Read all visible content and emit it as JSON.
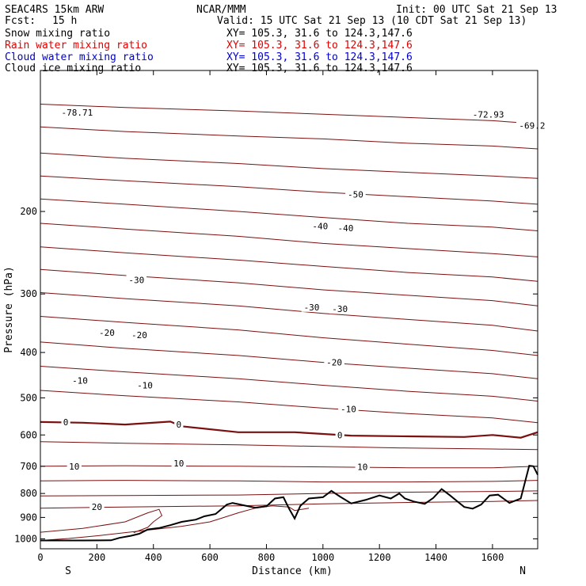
{
  "header": {
    "model": "SEAC4RS 15km ARW",
    "forecast_label": "Fcst:",
    "forecast_value": "15 h",
    "center": "NCAR/MMM",
    "init": "Init: 00 UTC Sat 21 Sep 13",
    "valid": "Valid: 15 UTC Sat 21 Sep 13 (10 CDT Sat 21 Sep 13)"
  },
  "fields": [
    {
      "name": "Snow mixing ratio",
      "xy": "XY= 105.3, 31.6 to 124.3,147.6",
      "color": "#000000"
    },
    {
      "name": "Rain water mixing ratio",
      "xy": "XY= 105.3, 31.6 to 124.3,147.6",
      "color": "#e00000"
    },
    {
      "name": "Cloud water mixing ratio",
      "xy": "XY= 105.3, 31.6 to 124.3,147.6",
      "color": "#0000cc"
    },
    {
      "name": "Cloud ice mixing ratio",
      "xy": "XY= 105.3, 31.6 to 124.3,147.6",
      "color": "#000000"
    }
  ],
  "chart_data": {
    "type": "line",
    "xlabel": "Distance (km)",
    "ylabel": "Pressure (hPa)",
    "xlim": [
      0,
      1760
    ],
    "ylim": [
      1050,
      100
    ],
    "y_scale": "log",
    "x_ticks": [
      0,
      200,
      400,
      600,
      800,
      1000,
      1200,
      1400,
      1600
    ],
    "y_ticks": [
      200,
      300,
      400,
      500,
      600,
      700,
      800,
      900,
      1000
    ],
    "x_end_labels": [
      "S",
      "N"
    ],
    "contour_color": "#7a1010",
    "isotherms": [
      {
        "x": [
          0,
          300,
          700,
          1000,
          1300,
          1600,
          1760
        ],
        "y": [
          118,
          120,
          122,
          124,
          126,
          128,
          130
        ]
      },
      {
        "x": [
          0,
          300,
          700,
          1000,
          1300,
          1600,
          1760
        ],
        "y": [
          132,
          135,
          138,
          140,
          143,
          145,
          147
        ]
      },
      {
        "x": [
          0,
          300,
          700,
          1000,
          1300,
          1600,
          1760
        ],
        "y": [
          150,
          154,
          158,
          162,
          165,
          168,
          170
        ]
      },
      {
        "x": [
          0,
          300,
          700,
          1000,
          1300,
          1600,
          1760
        ],
        "y": [
          168,
          172,
          177,
          182,
          186,
          190,
          193
        ]
      },
      {
        "x": [
          0,
          300,
          700,
          1000,
          1300,
          1600,
          1760
        ],
        "y": [
          188,
          193,
          200,
          206,
          212,
          216,
          220
        ]
      },
      {
        "x": [
          0,
          300,
          700,
          1000,
          1300,
          1600,
          1760
        ],
        "y": [
          212,
          218,
          226,
          234,
          240,
          246,
          250
        ]
      },
      {
        "x": [
          0,
          300,
          700,
          1000,
          1300,
          1600,
          1760
        ],
        "y": [
          238,
          245,
          254,
          262,
          270,
          276,
          282
        ]
      },
      {
        "x": [
          0,
          300,
          700,
          1000,
          1300,
          1600,
          1760
        ],
        "y": [
          266,
          274,
          284,
          294,
          302,
          310,
          318
        ]
      },
      {
        "x": [
          0,
          300,
          700,
          1000,
          1300,
          1600,
          1760
        ],
        "y": [
          298,
          307,
          318,
          330,
          340,
          350,
          360
        ]
      },
      {
        "x": [
          0,
          300,
          700,
          1000,
          1300,
          1600,
          1760
        ],
        "y": [
          335,
          345,
          358,
          372,
          384,
          396,
          406
        ]
      },
      {
        "x": [
          0,
          300,
          700,
          1000,
          1300,
          1600,
          1760
        ],
        "y": [
          380,
          392,
          406,
          420,
          432,
          444,
          455
        ]
      },
      {
        "x": [
          0,
          300,
          700,
          1000,
          1300,
          1600,
          1760
        ],
        "y": [
          428,
          440,
          455,
          470,
          484,
          496,
          508
        ]
      },
      {
        "x": [
          0,
          300,
          700,
          1000,
          1300,
          1600,
          1760
        ],
        "y": [
          482,
          495,
          510,
          526,
          540,
          552,
          565
        ]
      },
      {
        "x": [
          0,
          300,
          700,
          1000,
          1300,
          1600,
          1760
        ],
        "y": [
          620,
          625,
          630,
          635,
          640,
          643,
          645
        ]
      },
      {
        "x": [
          0,
          300,
          700,
          1000,
          1300,
          1600,
          1760
        ],
        "y": [
          700,
          698,
          700,
          702,
          705,
          705,
          700
        ]
      },
      {
        "x": [
          0,
          300,
          700,
          1000,
          1300,
          1600,
          1760
        ],
        "y": [
          752,
          750,
          752,
          756,
          756,
          754,
          750
        ]
      },
      {
        "x": [
          0,
          300,
          700,
          1000,
          1300,
          1600,
          1760
        ],
        "y": [
          810,
          808,
          806,
          800,
          795,
          792,
          790
        ]
      },
      {
        "x": [
          0,
          300,
          700,
          1000,
          1300,
          1600,
          1760
        ],
        "y": [
          860,
          855,
          850,
          842,
          836,
          832,
          828
        ]
      }
    ],
    "zero_line": {
      "x": [
        0,
        150,
        300,
        460,
        500,
        700,
        900,
        1100,
        1300,
        1500,
        1600,
        1700,
        1760
      ],
      "y": [
        563,
        565,
        570,
        562,
        575,
        592,
        592,
        602,
        604,
        606,
        600,
        608,
        592
      ]
    },
    "cloud_contours": [
      {
        "x": [
          0,
          150,
          300,
          380,
          420,
          430,
          400,
          380,
          330
        ],
        "y": [
          968,
          950,
          920,
          880,
          865,
          892,
          920,
          945,
          970
        ]
      },
      {
        "x": [
          0,
          100,
          200,
          300,
          400,
          500,
          600,
          650,
          700,
          760,
          820,
          880,
          900,
          950
        ],
        "y": [
          1008,
          998,
          985,
          970,
          955,
          940,
          920,
          900,
          880,
          860,
          850,
          855,
          870,
          860
        ]
      }
    ],
    "terrain": {
      "x": [
        0,
        150,
        250,
        280,
        320,
        350,
        380,
        420,
        460,
        500,
        550,
        580,
        620,
        660,
        680,
        720,
        760,
        800,
        830,
        860,
        880,
        900,
        920,
        950,
        1000,
        1030,
        1060,
        1100,
        1150,
        1200,
        1240,
        1270,
        1290,
        1320,
        1360,
        1390,
        1420,
        1450,
        1500,
        1530,
        1560,
        1590,
        1620,
        1660,
        1700,
        1730,
        1745,
        1760
      ],
      "y": [
        1008,
        1008,
        1007,
        995,
        985,
        975,
        955,
        948,
        935,
        920,
        910,
        895,
        885,
        845,
        838,
        848,
        858,
        852,
        820,
        815,
        862,
        905,
        850,
        820,
        815,
        790,
        812,
        840,
        826,
        808,
        820,
        800,
        820,
        832,
        842,
        818,
        783,
        808,
        855,
        862,
        845,
        808,
        805,
        838,
        820,
        698,
        700,
        730
      ]
    },
    "labels": [
      {
        "x": 130,
        "y": 123,
        "text": "-78.71"
      },
      {
        "x": 1585,
        "y": 124,
        "text": "-72.93"
      },
      {
        "x": 1740,
        "y": 131,
        "text": "-69.2"
      },
      {
        "x": 1115,
        "y": 184,
        "text": "-50"
      },
      {
        "x": 990,
        "y": 215,
        "text": "-40"
      },
      {
        "x": 1080,
        "y": 217,
        "text": "-40"
      },
      {
        "x": 340,
        "y": 280,
        "text": "-30"
      },
      {
        "x": 960,
        "y": 320,
        "text": "-30"
      },
      {
        "x": 1060,
        "y": 323,
        "text": "-30"
      },
      {
        "x": 235,
        "y": 363,
        "text": "-20"
      },
      {
        "x": 350,
        "y": 367,
        "text": "-20"
      },
      {
        "x": 1040,
        "y": 420,
        "text": "-20"
      },
      {
        "x": 140,
        "y": 459,
        "text": "-10"
      },
      {
        "x": 370,
        "y": 470,
        "text": "-10"
      },
      {
        "x": 1090,
        "y": 528,
        "text": "-10"
      },
      {
        "x": 90,
        "y": 563,
        "text": "0"
      },
      {
        "x": 490,
        "y": 570,
        "text": "0"
      },
      {
        "x": 1060,
        "y": 600,
        "text": "0"
      },
      {
        "x": 120,
        "y": 700,
        "text": "10"
      },
      {
        "x": 490,
        "y": 690,
        "text": "10"
      },
      {
        "x": 1140,
        "y": 702,
        "text": "10"
      },
      {
        "x": 200,
        "y": 855,
        "text": "20"
      }
    ]
  }
}
